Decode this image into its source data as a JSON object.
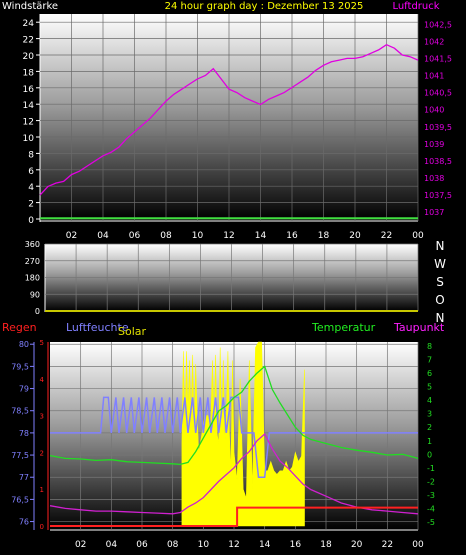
{
  "header": {
    "left": "Windstärke",
    "center": "24 hour graph day : Dezember 13 2025",
    "right": "Luftdruck"
  },
  "x_ticks": [
    "02",
    "04",
    "06",
    "08",
    "10",
    "12",
    "14",
    "16",
    "18",
    "20",
    "22",
    "00"
  ],
  "wind_dir_labels": [
    "N",
    "W",
    "S",
    "O",
    "N"
  ],
  "colors": {
    "pressure": "#e000e0",
    "wind": "#40e040",
    "wind_dir": "#c8c800",
    "humidity": "#8080ff",
    "solar": "#ffff00",
    "temperature": "#22dd22",
    "dewpoint": "#d020d0",
    "rain": "#ff2020",
    "header_left": "#ffffff",
    "header_center": "#ffff00",
    "header_right": "#ff00ff"
  },
  "chart_data": [
    {
      "type": "line",
      "panel": "top",
      "x_unit": "hour",
      "xlim": [
        0,
        24
      ],
      "left_axis": {
        "label": "Windstärke",
        "ylim": [
          0,
          25
        ],
        "ticks": [
          "0",
          "2",
          "4",
          "6",
          "8",
          "10",
          "12",
          "14",
          "16",
          "18",
          "20",
          "22",
          "24"
        ]
      },
      "right_axis": {
        "label": "Luftdruck",
        "ylim": [
          1036.8,
          1042.8
        ],
        "ticks": [
          "1037",
          "1037,5",
          "1038",
          "1038,5",
          "1039",
          "1039,5",
          "1040",
          "1040,5",
          "1041",
          "1041,5",
          "1042",
          "1042,5"
        ]
      },
      "series": [
        {
          "name": "Luftdruck",
          "axis": "right",
          "x": [
            0,
            0.5,
            1,
            1.5,
            2,
            2.5,
            3,
            3.5,
            4,
            4.5,
            5,
            5.5,
            6,
            6.5,
            7,
            7.5,
            8,
            8.5,
            9,
            9.5,
            10,
            10.5,
            11,
            11.5,
            12,
            12.5,
            13,
            13.5,
            14,
            14.5,
            15,
            15.5,
            16,
            16.5,
            17,
            17.5,
            18,
            18.5,
            19,
            19.5,
            20,
            20.5,
            21,
            21.5,
            22,
            22.5,
            23,
            23.5,
            24
          ],
          "y": [
            1037.5,
            1037.75,
            1037.85,
            1037.9,
            1038.1,
            1038.2,
            1038.35,
            1038.5,
            1038.65,
            1038.75,
            1038.9,
            1039.15,
            1039.35,
            1039.55,
            1039.75,
            1040.0,
            1040.25,
            1040.45,
            1040.6,
            1040.75,
            1040.9,
            1041.0,
            1041.2,
            1040.9,
            1040.6,
            1040.5,
            1040.35,
            1040.25,
            1040.15,
            1040.3,
            1040.4,
            1040.5,
            1040.65,
            1040.8,
            1040.95,
            1041.15,
            1041.3,
            1041.4,
            1041.45,
            1041.5,
            1041.5,
            1041.55,
            1041.65,
            1041.75,
            1041.9,
            1041.8,
            1041.6,
            1041.55,
            1041.45
          ]
        },
        {
          "name": "Windstärke",
          "axis": "left",
          "x": [
            0,
            24
          ],
          "y": [
            0.1,
            0.1
          ]
        }
      ]
    },
    {
      "type": "line",
      "panel": "middle",
      "xlim": [
        0,
        24
      ],
      "left_axis": {
        "ylim": [
          0,
          360
        ],
        "ticks": [
          "0",
          "90",
          "180",
          "270",
          "360"
        ]
      },
      "series": [
        {
          "name": "Windrichtung",
          "x": [
            0,
            24
          ],
          "y": [
            0,
            0
          ]
        }
      ]
    },
    {
      "type": "line",
      "panel": "bottom",
      "xlim": [
        0,
        24
      ],
      "left_axis": {
        "label": "Luftfeuchte",
        "ylim": [
          75.9,
          80.05
        ],
        "ticks": [
          "76",
          "76,5",
          "77",
          "77,5",
          "78",
          "78,5",
          "79",
          "79,5",
          "80"
        ]
      },
      "rain_axis": {
        "label": "Regen",
        "ticks": [
          "0",
          "1",
          "2",
          "3",
          "4",
          "5"
        ]
      },
      "right_axis": {
        "ylim": [
          -5.3,
          8.3
        ],
        "ticks": [
          "-5",
          "-4",
          "-3",
          "-2",
          "-1",
          "0",
          "1",
          "2",
          "3",
          "4",
          "5",
          "6",
          "7",
          "8"
        ]
      },
      "series": [
        {
          "name": "Luftfeuchte",
          "axis": "left",
          "x": [
            0,
            3.3,
            3.5,
            3.8,
            4.0,
            4.3,
            4.5,
            4.8,
            5.0,
            5.3,
            5.5,
            5.8,
            6.0,
            6.3,
            6.5,
            6.8,
            7.0,
            7.3,
            7.5,
            7.8,
            8.0,
            8.3,
            8.5,
            8.8,
            9.0,
            9.3,
            9.5,
            9.8,
            10.0,
            10.3,
            10.5,
            10.8,
            11.0,
            11.3,
            11.5,
            11.8,
            12.0,
            12.3,
            12.5,
            13.0,
            13.3,
            13.6,
            14.0,
            14.3,
            15.0,
            16.0,
            24
          ],
          "y": [
            78,
            78,
            78.8,
            78.8,
            78,
            78.8,
            78,
            78.8,
            78,
            78.8,
            78,
            78.8,
            78,
            78.8,
            78,
            78.8,
            78,
            78.8,
            78,
            78.8,
            78,
            78.8,
            78,
            78.8,
            78,
            78.8,
            78,
            78.8,
            78,
            78.8,
            78,
            78.8,
            78,
            78.8,
            78,
            78.8,
            78.8,
            78.8,
            78,
            78,
            78,
            77,
            77,
            78,
            78,
            78,
            78
          ]
        },
        {
          "name": "Solar",
          "x": [
            8.6,
            8.7,
            8.8,
            8.9,
            9.0,
            9.1,
            9.2,
            9.3,
            9.4,
            9.5,
            9.6,
            9.7,
            9.8,
            9.9,
            10.0,
            10.1,
            10.2,
            10.3,
            10.4,
            10.5,
            10.6,
            10.7,
            10.8,
            10.9,
            11.0,
            11.1,
            11.2,
            11.3,
            11.4,
            11.5,
            11.6,
            11.7,
            11.8,
            11.9,
            12.0,
            12.2,
            12.4,
            12.6,
            12.8,
            13.0,
            13.2,
            13.4,
            13.6,
            13.8,
            14.0,
            14.2,
            14.4,
            14.6,
            14.8,
            15.0,
            15.2,
            15.4,
            15.6,
            15.8,
            16.0,
            16.2,
            16.4,
            16.6
          ],
          "y": [
            0.45,
            0.95,
            0.5,
            0.95,
            0.6,
            0.9,
            0.55,
            0.93,
            0.5,
            0.88,
            0.6,
            0.4,
            0.45,
            0.5,
            0.55,
            0.6,
            0.6,
            0.6,
            0.55,
            0.6,
            0.9,
            0.55,
            0.93,
            0.5,
            0.45,
            0.97,
            0.5,
            0.9,
            0.45,
            0.6,
            0.95,
            0.5,
            0.3,
            0.9,
            0.4,
            0.25,
            0.8,
            0.2,
            0.15,
            0.9,
            0.2,
            0.97,
            1.0,
            1.0,
            0.3,
            0.3,
            0.35,
            0.3,
            0.28,
            0.3,
            0.3,
            0.35,
            0.3,
            0.32,
            0.4,
            0.35,
            0.38,
            0.85
          ]
        },
        {
          "name": "Temperatur",
          "axis": "right",
          "x": [
            0,
            1,
            2,
            3,
            4,
            5,
            6,
            7,
            8,
            8.5,
            9,
            9.5,
            10,
            10.5,
            11,
            11.5,
            12,
            12.5,
            13,
            13.5,
            14,
            14.5,
            15,
            15.5,
            16,
            16.5,
            17,
            18,
            19,
            20,
            21,
            22,
            23,
            24
          ],
          "y": [
            -0.1,
            -0.3,
            -0.35,
            -0.45,
            -0.4,
            -0.55,
            -0.6,
            -0.65,
            -0.7,
            -0.75,
            -0.6,
            0.2,
            1.2,
            2.2,
            3.2,
            3.6,
            4.2,
            4.6,
            5.4,
            6.0,
            6.5,
            4.8,
            3.8,
            2.9,
            2.0,
            1.4,
            1.1,
            0.8,
            0.5,
            0.3,
            0.15,
            -0.05,
            0.0,
            -0.3
          ]
        },
        {
          "name": "Taupunkt",
          "axis": "right",
          "x": [
            0,
            1,
            2,
            3,
            4,
            5,
            6,
            7,
            8,
            8.5,
            9,
            9.5,
            10,
            10.5,
            11,
            11.5,
            12,
            12.5,
            13,
            13.5,
            14,
            14.5,
            15,
            15.5,
            16,
            16.5,
            17,
            18,
            19,
            20,
            21,
            22,
            23,
            24
          ],
          "y": [
            -3.8,
            -4.0,
            -4.1,
            -4.2,
            -4.2,
            -4.25,
            -4.3,
            -4.35,
            -4.4,
            -4.3,
            -3.9,
            -3.6,
            -3.2,
            -2.6,
            -2.0,
            -1.5,
            -1.0,
            -0.3,
            0.2,
            1.0,
            1.5,
            0.4,
            -0.5,
            -1.0,
            -1.6,
            -2.2,
            -2.6,
            -3.1,
            -3.6,
            -3.9,
            -4.1,
            -4.2,
            -4.3,
            -4.4
          ]
        },
        {
          "name": "Regen",
          "axis": "rain",
          "x": [
            0,
            12.2,
            12.2,
            24
          ],
          "y": [
            0,
            0,
            0.5,
            0.5
          ]
        }
      ]
    }
  ]
}
